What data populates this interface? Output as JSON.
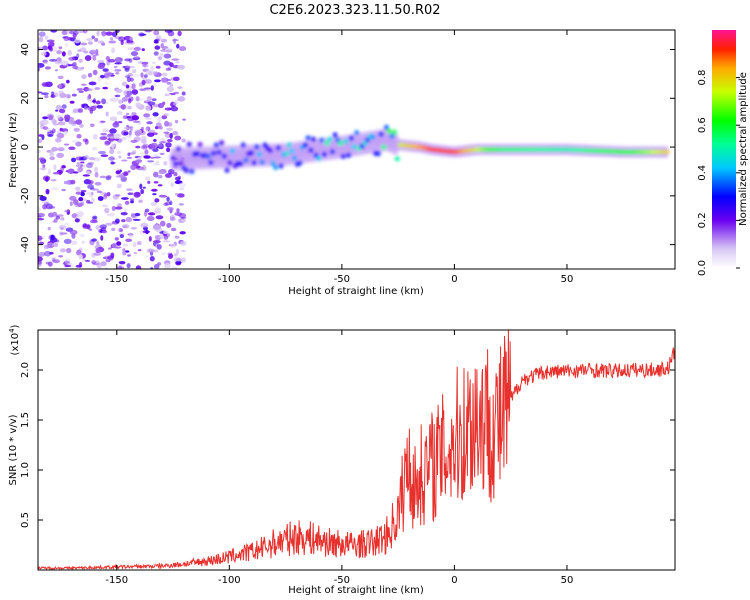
{
  "title": "C2E6.2023.323.11.50.R02",
  "colors": {
    "line": "#e8312d",
    "axis": "#000000"
  },
  "chart_data": [
    {
      "type": "heatmap",
      "name": "spectrogram",
      "xlabel": "Height of straight line (km)",
      "ylabel": "Frequency (Hz)",
      "xlim": [
        -185,
        98
      ],
      "ylim": [
        -50,
        48
      ],
      "xticks": [
        -150,
        -100,
        -50,
        0,
        50
      ],
      "yticks": [
        -40,
        -20,
        0,
        20,
        40
      ],
      "colorbar": {
        "label": "Normalized spectral amplitude",
        "range": [
          0,
          1
        ],
        "ticks": [
          "0.0",
          "0.2",
          "0.4",
          "0.6",
          "0.8"
        ],
        "tick_values": [
          0.0,
          0.2,
          0.4,
          0.6,
          0.8
        ]
      },
      "ridge": {
        "description": "dominant frequency track (height km, freq Hz, amplitude)",
        "points": [
          [
            -125,
            -5,
            0.25
          ],
          [
            -100,
            -4,
            0.35
          ],
          [
            -75,
            -3,
            0.4
          ],
          [
            -50,
            0,
            0.45
          ],
          [
            -30,
            3,
            0.5
          ],
          [
            -25,
            1,
            0.75
          ],
          [
            -15,
            0,
            0.85
          ],
          [
            -10,
            -1,
            0.9
          ],
          [
            0,
            -2,
            0.9
          ],
          [
            10,
            -1,
            0.75
          ],
          [
            20,
            -1,
            0.55
          ],
          [
            50,
            -1,
            0.5
          ],
          [
            75,
            -2,
            0.6
          ],
          [
            95,
            -2,
            0.8
          ]
        ]
      }
    },
    {
      "type": "line",
      "name": "snr",
      "xlabel": "Height of straight line (km)",
      "ylabel": "SNR (10 * v/v)",
      "multiplier": "(x10",
      "multiplier_exp": "4",
      "multiplier_close": ")",
      "xlim": [
        -185,
        98
      ],
      "ylim": [
        0,
        24000
      ],
      "xticks": [
        -150,
        -100,
        -50,
        0,
        50
      ],
      "yticks": [
        5000,
        10000,
        15000,
        20000
      ],
      "ytick_labels": [
        "0.5",
        "1.0",
        "1.5",
        "2.0"
      ],
      "series": [
        {
          "name": "SNR",
          "x": [
            -185,
            -170,
            -150,
            -130,
            -120,
            -110,
            -100,
            -95,
            -90,
            -85,
            -80,
            -75,
            -70,
            -65,
            -60,
            -55,
            -50,
            -45,
            -40,
            -35,
            -30,
            -25,
            -22,
            -20,
            -18,
            -15,
            -10,
            -5,
            0,
            5,
            10,
            15,
            20,
            25,
            30,
            40,
            50,
            60,
            70,
            80,
            90,
            95,
            98
          ],
          "values": [
            200,
            200,
            300,
            400,
            600,
            900,
            1300,
            1600,
            1800,
            2200,
            2700,
            3000,
            3300,
            3200,
            3000,
            2700,
            2600,
            2500,
            2600,
            2800,
            3500,
            5500,
            9000,
            11000,
            8000,
            9500,
            10500,
            11500,
            13000,
            14000,
            15500,
            15000,
            14500,
            17000,
            19000,
            19800,
            19900,
            20000,
            19900,
            20000,
            20000,
            20200,
            22000
          ]
        }
      ]
    }
  ]
}
